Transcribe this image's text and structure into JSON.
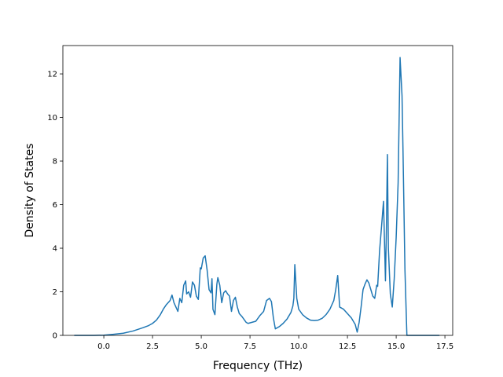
{
  "chart_data": {
    "type": "line",
    "title": "",
    "xlabel": "Frequency (THz)",
    "ylabel": "Density of States",
    "xlim": [
      -2.1,
      17.9
    ],
    "ylim": [
      0,
      13.3
    ],
    "xticks": [
      0.0,
      2.5,
      5.0,
      7.5,
      10.0,
      12.5,
      15.0,
      17.5
    ],
    "xtick_labels": [
      "0.0",
      "2.5",
      "5.0",
      "7.5",
      "10.0",
      "12.5",
      "15.0",
      "17.5"
    ],
    "yticks": [
      0,
      2,
      4,
      6,
      8,
      10,
      12
    ],
    "ytick_labels": [
      "0",
      "2",
      "4",
      "6",
      "8",
      "10",
      "12"
    ],
    "grid": false,
    "legend": "none",
    "series": [
      {
        "color": "#1f77b4",
        "x": [
          -1.5,
          -1.0,
          -0.5,
          0.0,
          0.5,
          1.0,
          1.5,
          2.0,
          2.3,
          2.5,
          2.7,
          2.9,
          3.05,
          3.2,
          3.3,
          3.4,
          3.5,
          3.6,
          3.7,
          3.8,
          3.9,
          4.0,
          4.1,
          4.2,
          4.25,
          4.35,
          4.45,
          4.55,
          4.65,
          4.75,
          4.85,
          4.95,
          5.0,
          5.1,
          5.2,
          5.3,
          5.4,
          5.5,
          5.55,
          5.6,
          5.7,
          5.8,
          5.85,
          5.95,
          6.05,
          6.15,
          6.25,
          6.35,
          6.45,
          6.55,
          6.65,
          6.75,
          6.85,
          6.95,
          7.1,
          7.3,
          7.4,
          7.6,
          7.8,
          8.0,
          8.2,
          8.35,
          8.5,
          8.6,
          8.7,
          8.8,
          9.0,
          9.2,
          9.4,
          9.6,
          9.7,
          9.75,
          9.8,
          9.9,
          10.0,
          10.2,
          10.4,
          10.6,
          10.8,
          11.0,
          11.2,
          11.4,
          11.6,
          11.8,
          11.9,
          12.0,
          12.1,
          12.3,
          12.5,
          12.7,
          12.9,
          13.0,
          13.1,
          13.2,
          13.3,
          13.4,
          13.5,
          13.6,
          13.7,
          13.8,
          13.9,
          14.0,
          14.05,
          14.15,
          14.25,
          14.35,
          14.45,
          14.5,
          14.55,
          14.6,
          14.7,
          14.8,
          14.9,
          15.0,
          15.1,
          15.2,
          15.3,
          15.35,
          15.45,
          15.55,
          15.6,
          15.8,
          16.0,
          16.5,
          17.0,
          17.2
        ],
        "y": [
          0,
          0,
          0,
          0.01,
          0.05,
          0.1,
          0.2,
          0.35,
          0.45,
          0.55,
          0.7,
          0.95,
          1.2,
          1.4,
          1.5,
          1.6,
          1.85,
          1.5,
          1.3,
          1.1,
          1.7,
          1.5,
          2.3,
          2.5,
          1.9,
          2.0,
          1.75,
          2.45,
          2.3,
          1.8,
          1.65,
          3.1,
          3.05,
          3.55,
          3.65,
          3.0,
          2.1,
          1.95,
          2.6,
          1.2,
          0.95,
          2.35,
          2.65,
          2.3,
          1.5,
          1.95,
          2.05,
          1.9,
          1.8,
          1.1,
          1.6,
          1.75,
          1.3,
          1.0,
          0.85,
          0.6,
          0.55,
          0.6,
          0.65,
          0.9,
          1.1,
          1.6,
          1.7,
          1.55,
          0.8,
          0.3,
          0.4,
          0.55,
          0.75,
          1.05,
          1.35,
          1.7,
          3.25,
          1.7,
          1.2,
          0.95,
          0.8,
          0.7,
          0.68,
          0.7,
          0.78,
          0.95,
          1.2,
          1.6,
          2.1,
          2.75,
          1.3,
          1.2,
          1.0,
          0.8,
          0.5,
          0.15,
          0.6,
          1.3,
          2.1,
          2.35,
          2.55,
          2.4,
          2.1,
          1.8,
          1.7,
          2.3,
          2.25,
          3.9,
          5.0,
          6.15,
          2.5,
          5.0,
          8.3,
          4.0,
          1.9,
          1.3,
          2.6,
          4.5,
          7.0,
          12.75,
          11.0,
          8.5,
          3.0,
          0.0,
          0.0,
          0.0,
          0.0,
          0.0,
          0.0,
          0.0
        ]
      }
    ]
  }
}
